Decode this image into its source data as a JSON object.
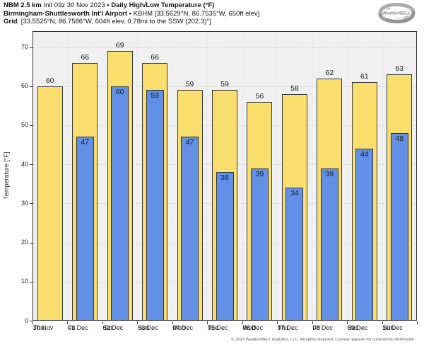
{
  "header": {
    "model": "NBM 2.5 km",
    "init": "Init 09z 30 Nov 2023",
    "sep": "•",
    "product": "Daily High/Low Temperature (°F)",
    "station": "Birmingham-Shuttlesworth Int'l Airport",
    "station_sep": "•",
    "station_info": "KBHM [33.5629°N, 86.7535°W, 650ft elev]",
    "grid_label": "Grid",
    "grid_info": ": [33.5525°N, 86.7586°W, 604ft elev, 0.78mi to the SSW (202.3)°]"
  },
  "logo": {
    "text": "WeatherBELL",
    "subtext": "Analytics LLC"
  },
  "chart_data": {
    "type": "bar",
    "title": "Daily High/Low Temperature (°F)",
    "xlabel": "",
    "ylabel": "Temperature [°F]",
    "ylim": [
      0,
      74
    ],
    "yticks": [
      0,
      10,
      20,
      30,
      40,
      50,
      60,
      70
    ],
    "grid": "horizontal dashed lines every 10°F, faint vertical dashed lines at day boundaries",
    "legend": "none",
    "plot_background": "#f0f0f0",
    "categories": [
      "30 Nov",
      "01 Dec",
      "02 Dec",
      "03 Dec",
      "04 Dec",
      "05 Dec",
      "06 Dec",
      "07 Dec",
      "08 Dec",
      "09 Dec",
      "10 Dec"
    ],
    "weekdays": [
      "Thu",
      "Fri",
      "Sat",
      "Sun",
      "Mon",
      "Tue",
      "Wed",
      "Thu",
      "Fri",
      "Sat",
      "Sun"
    ],
    "series": [
      {
        "name": "Daily High",
        "color": "#FADE6E",
        "values": [
          60,
          66,
          69,
          66,
          59,
          59,
          56,
          58,
          62,
          61,
          63
        ]
      },
      {
        "name": "Daily Low",
        "color": "#6190E6",
        "values": [
          null,
          47,
          60,
          59,
          47,
          38,
          39,
          34,
          39,
          44,
          48
        ]
      }
    ]
  },
  "footer": "© 2023 WeatherBELL Analytics, LLC. All rights reserved. License required for commercial distribution."
}
